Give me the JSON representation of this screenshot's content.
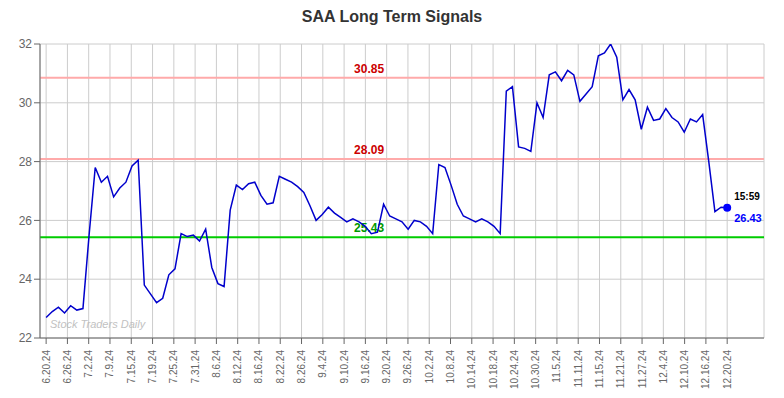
{
  "chart_data": {
    "type": "line",
    "title": "SAA Long Term Signals",
    "x": [
      0,
      1,
      2,
      3,
      4,
      5,
      6,
      7,
      8,
      9,
      10,
      11,
      12,
      13,
      14,
      15,
      16,
      17,
      18,
      19,
      20,
      21,
      22,
      23,
      24,
      25,
      26,
      27,
      28,
      29,
      30,
      31,
      32,
      33,
      34,
      35,
      36,
      37,
      38,
      39,
      40,
      41,
      42,
      43,
      44,
      45,
      46,
      47,
      48,
      49,
      50,
      51,
      52,
      53,
      54,
      55,
      56,
      57,
      58,
      59,
      60,
      61,
      62,
      63,
      64,
      65,
      66,
      67,
      68,
      69,
      70,
      71,
      72,
      73,
      74,
      75,
      76,
      77,
      78,
      79,
      80,
      81,
      82,
      83,
      84,
      85,
      86,
      87,
      88,
      89,
      90,
      91,
      92,
      93,
      94,
      95,
      96,
      97,
      98,
      99,
      100,
      101,
      102,
      103,
      104,
      105,
      106,
      107,
      108,
      109,
      110,
      111
    ],
    "series": [
      {
        "name": "SAA",
        "color": "#0000cc",
        "values": [
          22.7,
          22.9,
          23.05,
          22.85,
          23.1,
          22.95,
          23.0,
          25.5,
          27.8,
          27.3,
          27.5,
          26.8,
          27.1,
          27.3,
          27.85,
          28.05,
          23.8,
          23.5,
          23.2,
          23.35,
          24.15,
          24.35,
          25.55,
          25.45,
          25.5,
          25.3,
          25.7,
          24.4,
          23.85,
          23.75,
          26.35,
          27.2,
          27.05,
          27.25,
          27.3,
          26.85,
          26.55,
          26.6,
          27.5,
          27.4,
          27.3,
          27.15,
          26.95,
          26.5,
          26.0,
          26.2,
          26.45,
          26.25,
          26.1,
          25.95,
          26.05,
          25.95,
          25.8,
          25.55,
          25.6,
          26.55,
          26.15,
          26.05,
          25.95,
          25.7,
          26.0,
          25.95,
          25.8,
          25.55,
          27.9,
          27.8,
          27.2,
          26.55,
          26.15,
          26.05,
          25.95,
          26.05,
          25.95,
          25.8,
          25.55,
          30.4,
          30.55,
          28.5,
          28.45,
          28.35,
          30.0,
          29.5,
          30.95,
          31.05,
          30.75,
          31.1,
          30.95,
          30.05,
          30.3,
          30.55,
          31.6,
          31.7,
          32.0,
          31.55,
          30.1,
          30.45,
          30.1,
          29.1,
          29.85,
          29.4,
          29.45,
          29.8,
          29.5,
          29.35,
          29.0,
          29.45,
          29.35,
          29.6,
          28.0,
          26.3,
          26.45,
          26.43
        ]
      }
    ],
    "xlim": [
      -1,
      117
    ],
    "xticks": [
      {
        "value": 0,
        "label": "6.20.24"
      },
      {
        "value": 3.46875,
        "label": "6.26.24"
      },
      {
        "value": 6.9375,
        "label": "7.2.24"
      },
      {
        "value": 10.40625,
        "label": "7.9.24"
      },
      {
        "value": 13.875,
        "label": "7.15.24"
      },
      {
        "value": 17.34375,
        "label": "7.19.24"
      },
      {
        "value": 20.8125,
        "label": "7.25.24"
      },
      {
        "value": 24.28125,
        "label": "7.31.24"
      },
      {
        "value": 27.75,
        "label": "8.6.24"
      },
      {
        "value": 31.21875,
        "label": "8.12.24"
      },
      {
        "value": 34.6875,
        "label": "8.16.24"
      },
      {
        "value": 38.15625,
        "label": "8.22.24"
      },
      {
        "value": 41.625,
        "label": "8.26.24"
      },
      {
        "value": 45.09375,
        "label": "9.4.24"
      },
      {
        "value": 48.5625,
        "label": "9.10.24"
      },
      {
        "value": 52.03125,
        "label": "9.16.24"
      },
      {
        "value": 55.5,
        "label": "9.20.24"
      },
      {
        "value": 58.96875,
        "label": "9.26.24"
      },
      {
        "value": 62.4375,
        "label": "10.2.24"
      },
      {
        "value": 65.90625,
        "label": "10.8.24"
      },
      {
        "value": 69.375,
        "label": "10.14.24"
      },
      {
        "value": 72.84375,
        "label": "10.18.24"
      },
      {
        "value": 76.3125,
        "label": "10.24.24"
      },
      {
        "value": 79.78125,
        "label": "10.30.24"
      },
      {
        "value": 83.25,
        "label": "11.5.24"
      },
      {
        "value": 86.71875,
        "label": "11.11.24"
      },
      {
        "value": 90.1875,
        "label": "11.15.24"
      },
      {
        "value": 93.65625,
        "label": "11.21.24"
      },
      {
        "value": 97.125,
        "label": "11.27.24"
      },
      {
        "value": 100.59375,
        "label": "12.4.24"
      },
      {
        "value": 104.0625,
        "label": "12.10.24"
      },
      {
        "value": 107.53125,
        "label": "12.16.24"
      },
      {
        "value": 111,
        "label": "12.20.24"
      }
    ],
    "ylim": [
      22,
      32
    ],
    "yticks": [
      22,
      24,
      26,
      28,
      30,
      32
    ],
    "grid": true,
    "reference_lines": [
      {
        "value": 30.85,
        "label": "30.85",
        "color": "#ffaaaa",
        "label_color": "#cc0000"
      },
      {
        "value": 28.09,
        "label": "28.09",
        "color": "#ffaaaa",
        "label_color": "#cc0000"
      },
      {
        "value": 25.43,
        "label": "25.43",
        "color": "#00cc00",
        "label_color": "#009900"
      }
    ],
    "last_point": {
      "label": "15:59",
      "value_label": "26.43",
      "color": "#0000ff"
    },
    "annotations": [
      "Stock Traders Daily"
    ]
  }
}
